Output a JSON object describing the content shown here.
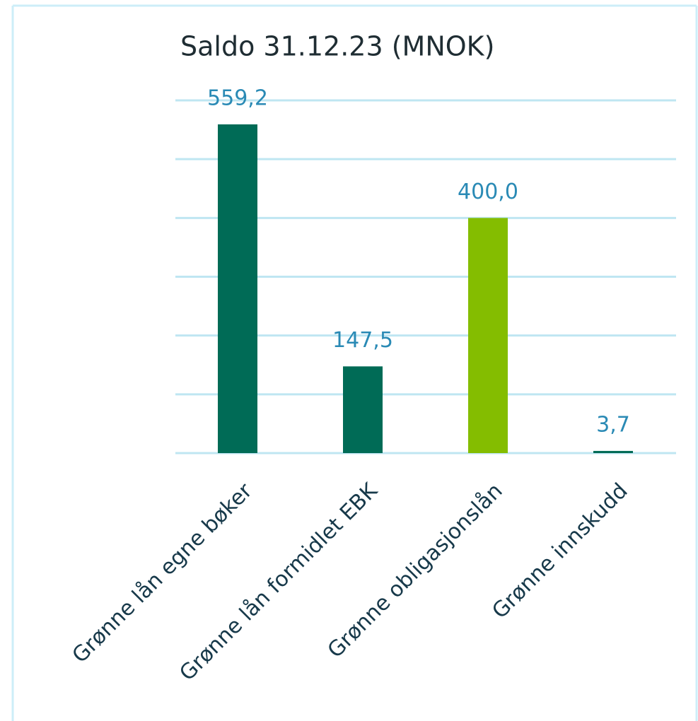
{
  "chart_data": {
    "type": "bar",
    "title": "Saldo 31.12.23 (MNOK)",
    "categories": [
      "Grønne lån egne bøker",
      "Grønne lån formidlet EBK",
      "Grønne obligasjonslån",
      "Grønne innskudd"
    ],
    "values": [
      559.2,
      147.5,
      400.0,
      3.7
    ],
    "value_labels": [
      "559,2",
      "147,5",
      "400,0",
      "3,7"
    ],
    "colors": [
      "#006b56",
      "#006b56",
      "#84bd00",
      "#006b56"
    ],
    "ylim": [
      0,
      600
    ],
    "yticks": [
      0,
      100,
      200,
      300,
      400,
      500,
      600
    ],
    "grid": true
  }
}
